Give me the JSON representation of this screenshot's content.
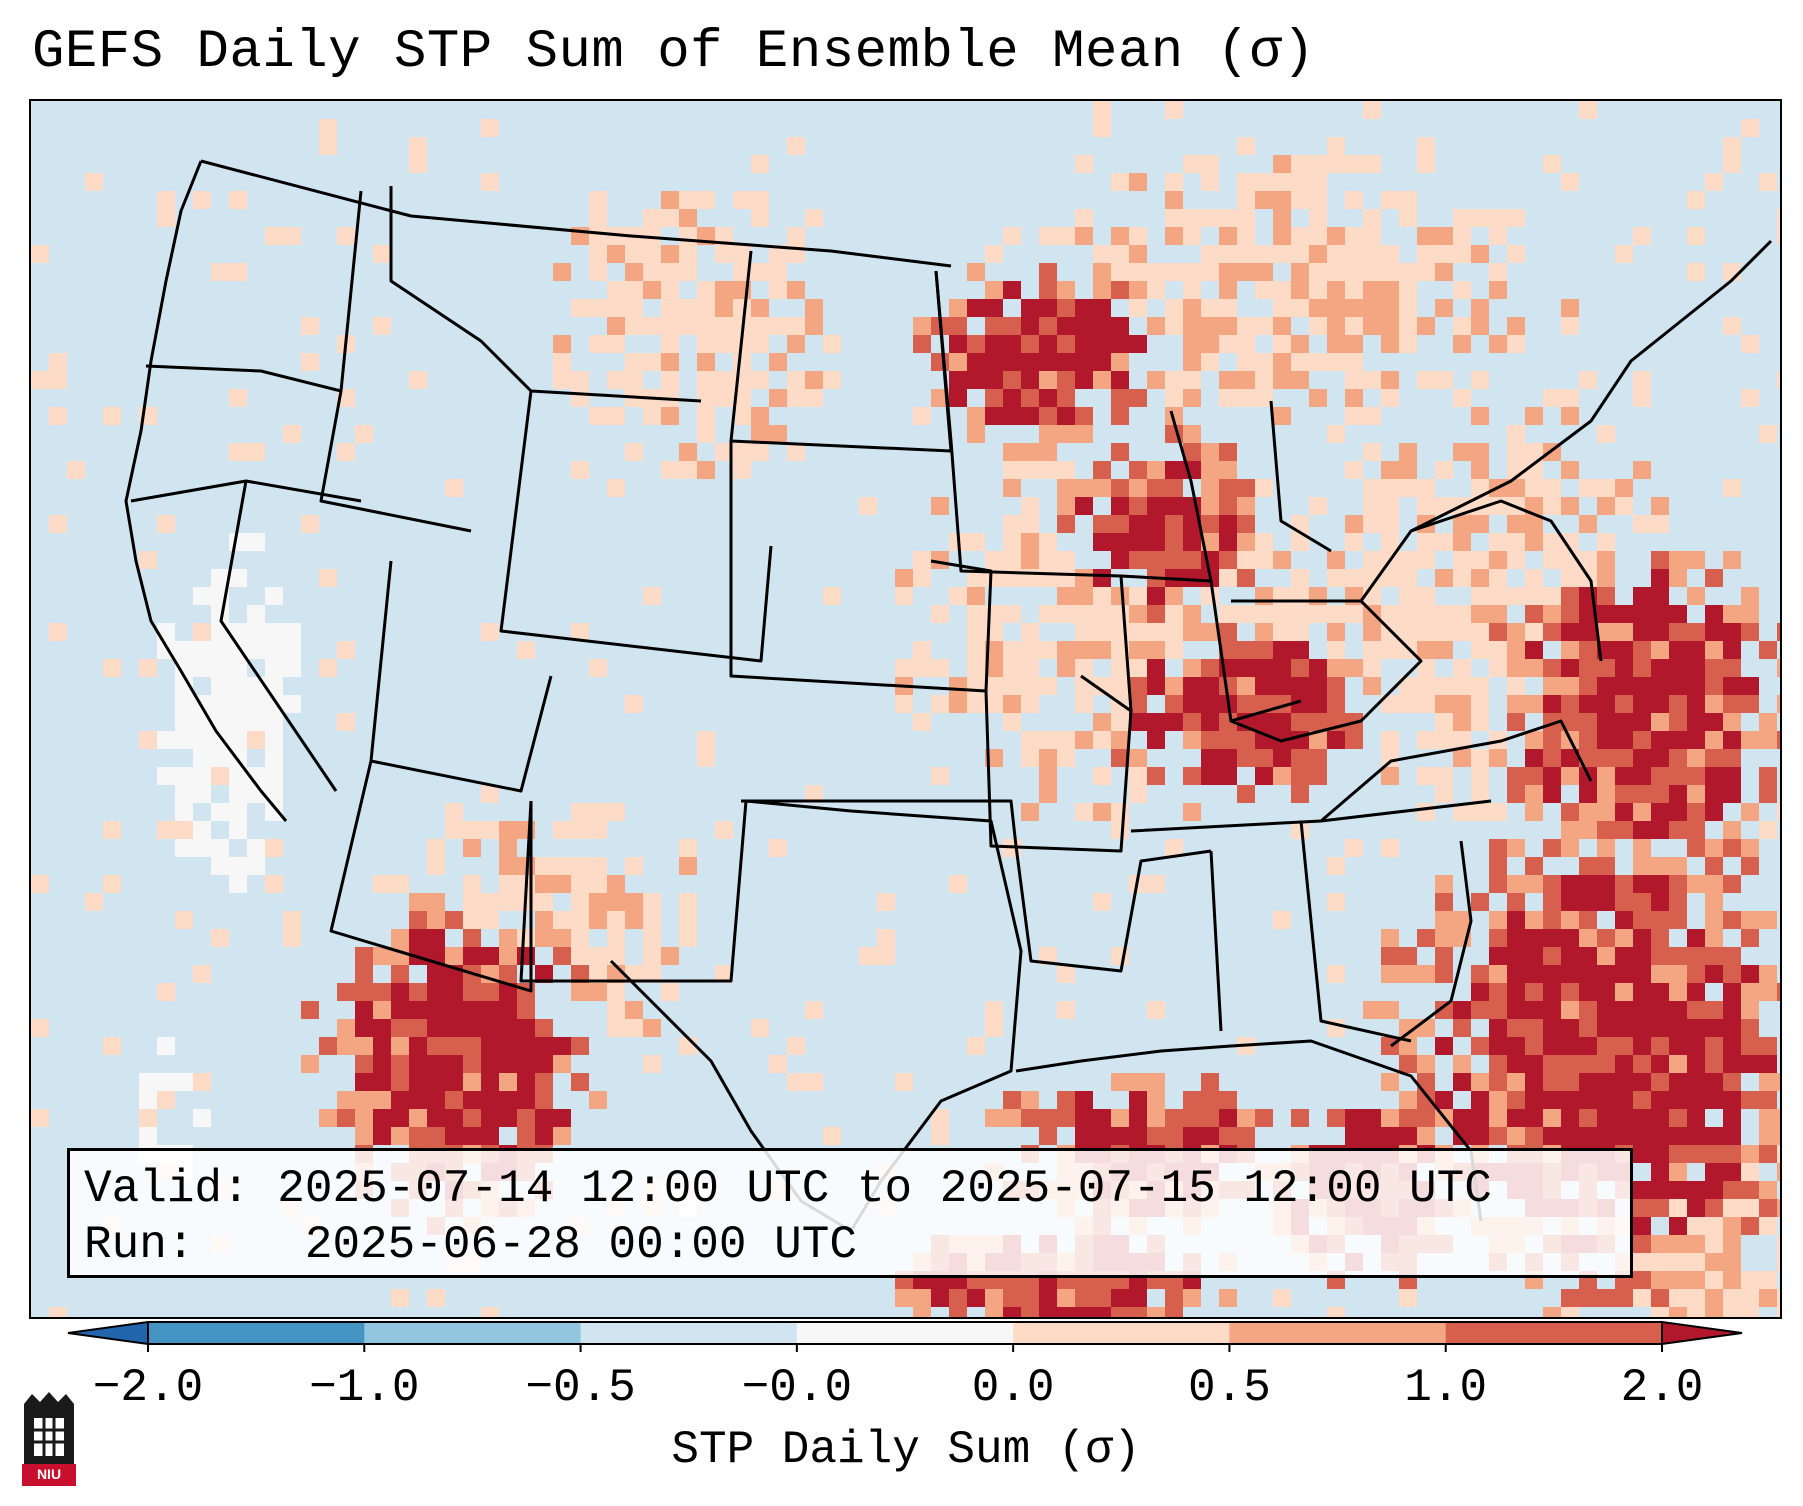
{
  "title": "GEFS Daily STP Sum of Ensemble Mean (σ)",
  "info": {
    "valid_label": "Valid:",
    "valid_value": "2025-07-14 12:00 UTC to 2025-07-15 12:00 UTC",
    "run_label": "Run:",
    "run_value": "2025-06-28 00:00 UTC"
  },
  "colorbar": {
    "label": "STP Daily Sum (σ)",
    "ticks": [
      "−2.0",
      "−1.0",
      "−0.5",
      "−0.0",
      "0.0",
      "0.5",
      "1.0",
      "2.0"
    ],
    "bins": [
      {
        "range": "< -2.0",
        "color": "#2166ac"
      },
      {
        "range": "-2.0 to -1.0",
        "color": "#4393c3"
      },
      {
        "range": "-1.0 to -0.5",
        "color": "#92c5de"
      },
      {
        "range": "-0.5 to -0.0",
        "color": "#d1e5f0"
      },
      {
        "range": "-0.0 to 0.0",
        "color": "#f7f7f7"
      },
      {
        "range": "0.0 to 0.5",
        "color": "#fddbc7"
      },
      {
        "range": "0.5 to 1.0",
        "color": "#f4a582"
      },
      {
        "range": "1.0 to 2.0",
        "color": "#d6604d"
      },
      {
        "range": "> 2.0",
        "color": "#b2182b"
      }
    ]
  },
  "map": {
    "region": "Contiguous United States",
    "features": [
      "state-borders",
      "coastlines",
      "great-lakes",
      "gulf-of-mexico"
    ]
  },
  "logo": {
    "text": "NIU"
  }
}
